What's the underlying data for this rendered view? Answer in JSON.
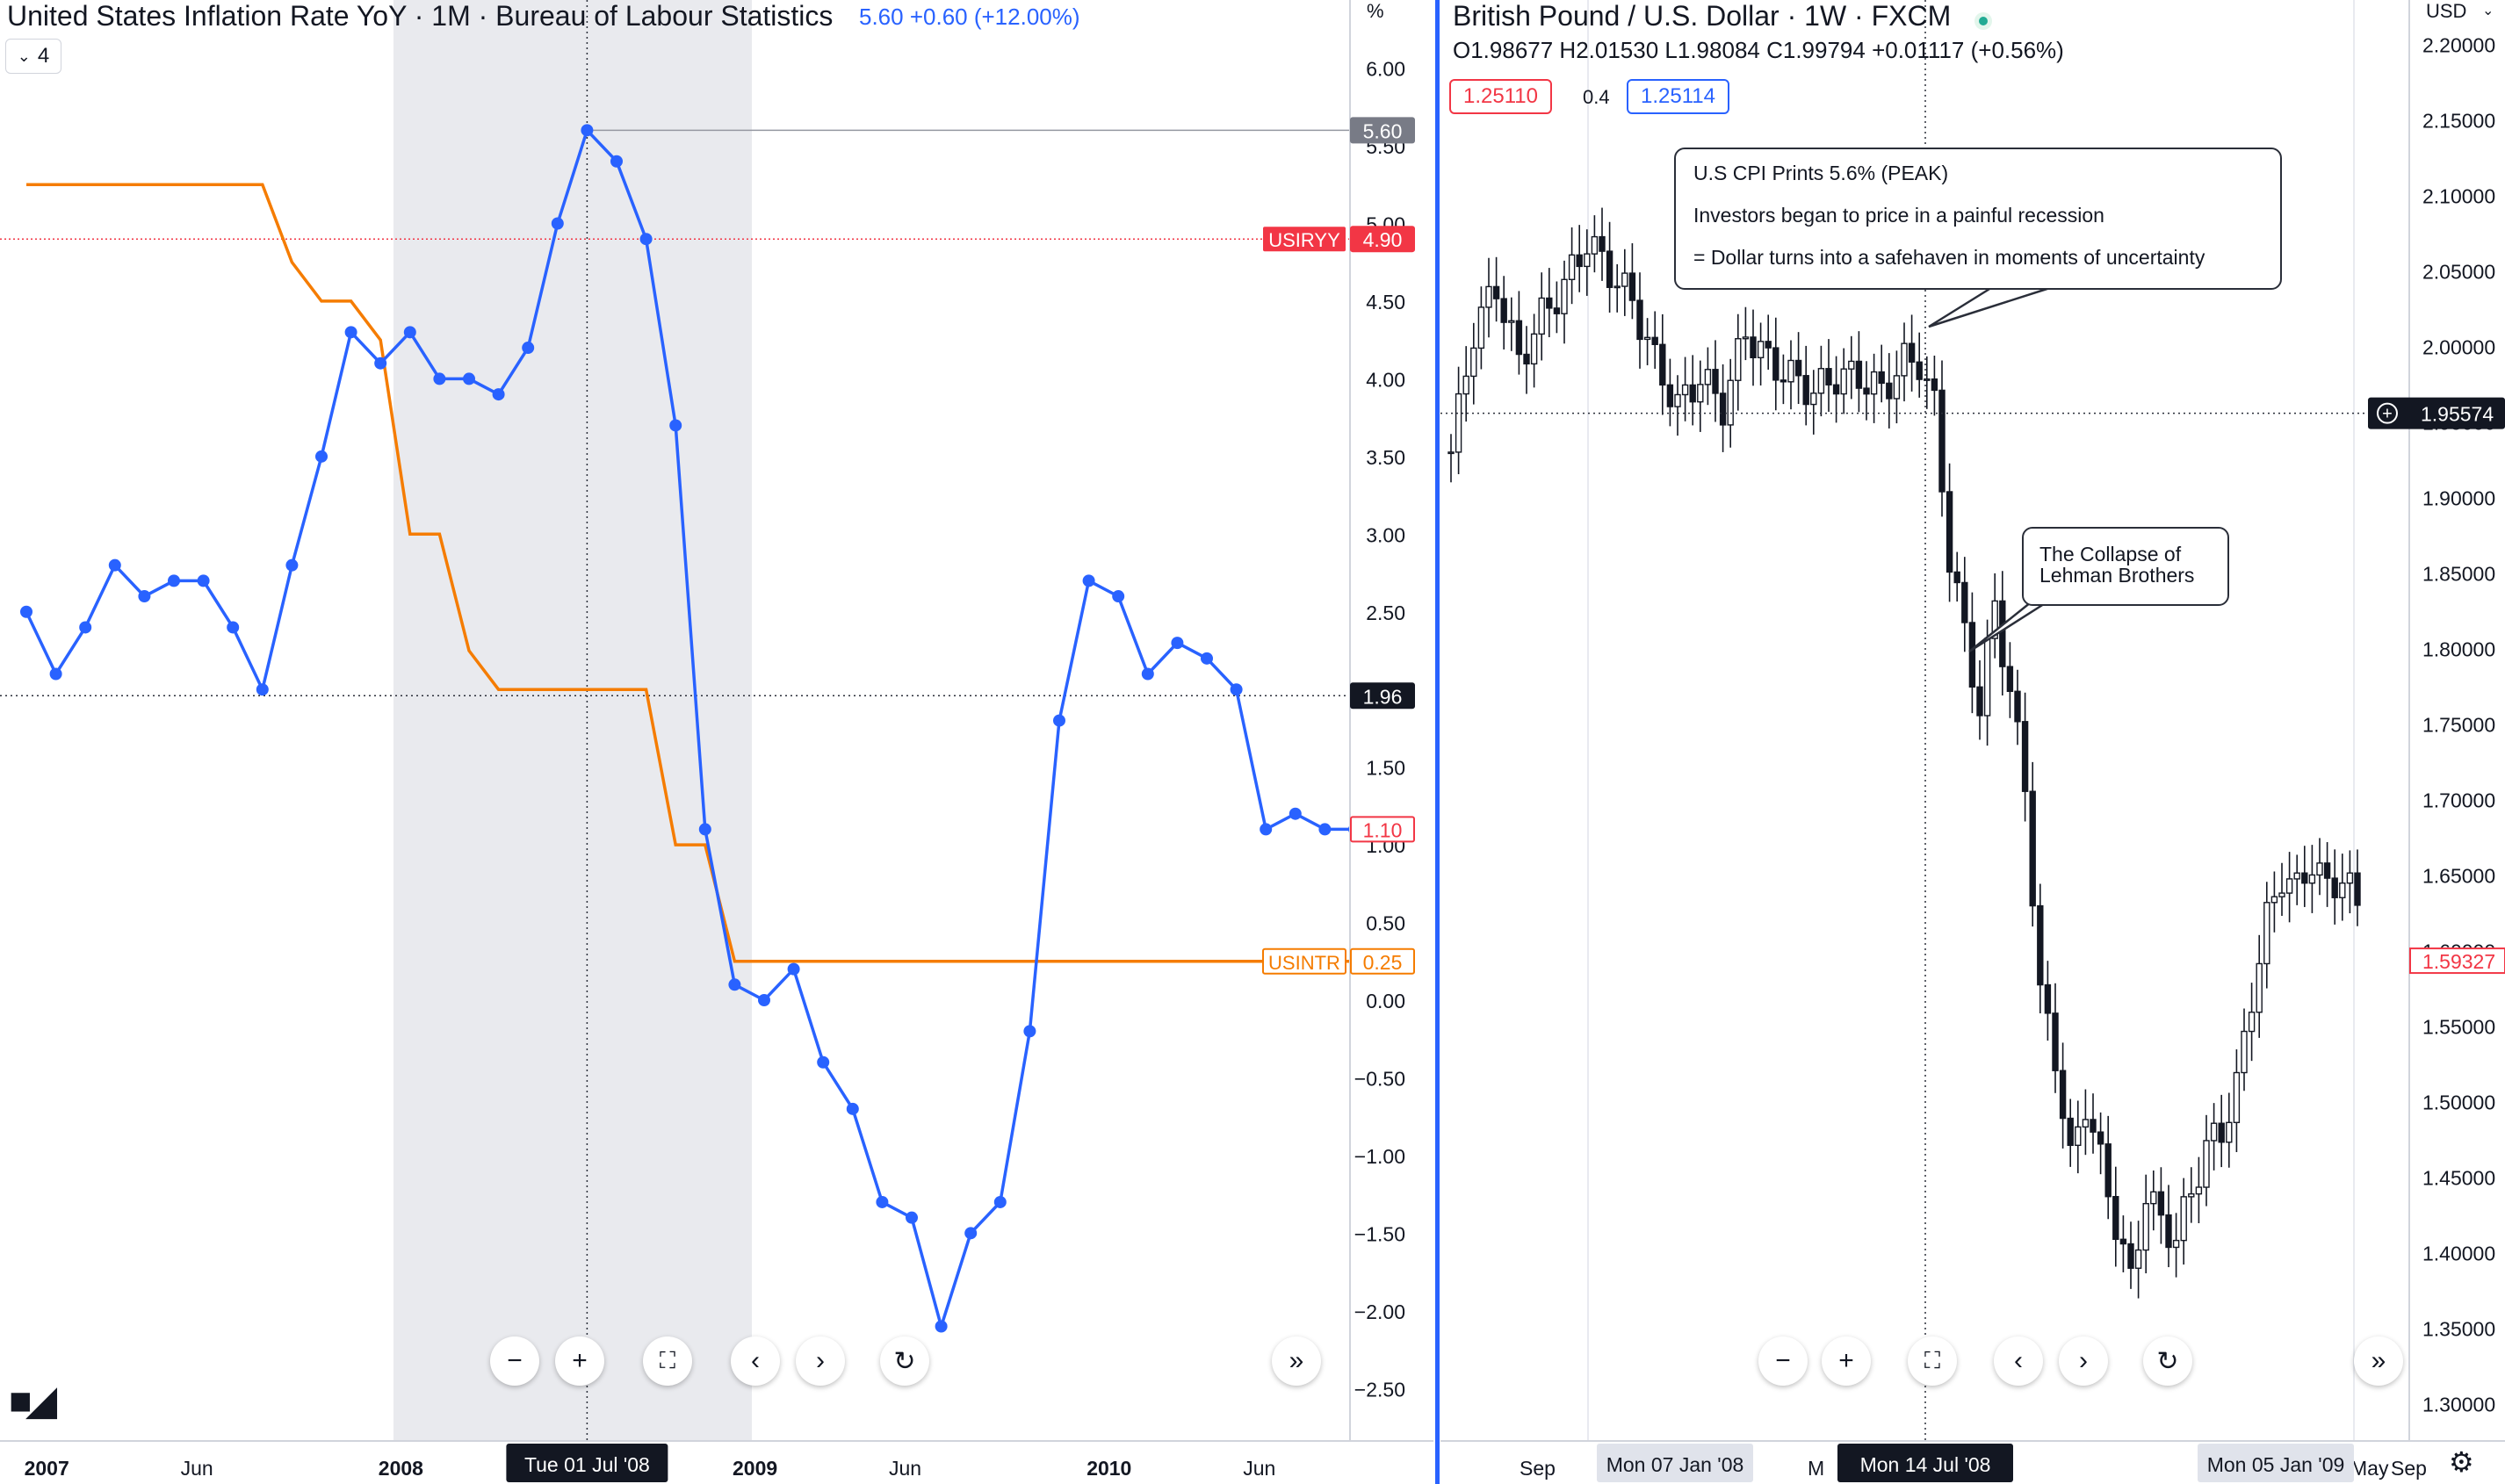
{
  "left": {
    "title": "United States Inflation Rate YoY · 1M · Bureau of Labour Statistics",
    "change": "5.60 +0.60 (+12.00%)",
    "interval_label": "4",
    "axis_unit": "%",
    "crosshair_date": "Tue 01 Jul '08",
    "labels": {
      "cpi_last": "5.60",
      "usiryy_name": "USIRYY",
      "usiryy_value": "4.90",
      "crosshair_value": "1.96",
      "cpi_end": "1.10",
      "usintr_name": "USINTR",
      "usintr_value": "0.25"
    }
  },
  "right": {
    "title": "British Pound / U.S. Dollar · 1W · FXCM",
    "ohlc": "O1.98677 H2.01530 L1.98084 C1.99794 +0.01117 (+0.56%)",
    "bid": "1.25110",
    "spread": "0.4",
    "ask": "1.25114",
    "currency": "USD",
    "crosshair_value": "1.95574",
    "last_price": "1.59327",
    "crosshair_date": "Mon 14 Jul '08",
    "date_label_1": "Mon 07 Jan '08",
    "date_label_2": "Mon 05 Jan '09",
    "callout_cpi": {
      "line1": "U.S CPI Prints 5.6% (PEAK)",
      "line2": "Investors began to price in a painful recession",
      "line3": "= Dollar turns into a safehaven in moments of uncertainty"
    },
    "callout_lehman": {
      "line1": "The Collapse of",
      "line2": "Lehman Brothers"
    }
  },
  "colors": {
    "cpi": "#2962ff",
    "rate": "#f57c00",
    "red": "#f23645",
    "shade": "#e9eaee"
  },
  "chart_data": [
    {
      "type": "line",
      "title": "United States Inflation Rate YoY · 1M · Bureau of Labour Statistics",
      "ylabel": "%",
      "ylim": [
        -2.5,
        6.0
      ],
      "y_ticks": [
        "6.00",
        "5.50",
        "5.00",
        "4.50",
        "4.00",
        "3.50",
        "3.00",
        "2.50",
        "2.00",
        "1.50",
        "1.00",
        "0.50",
        "0.00",
        "−0.50",
        "−1.00",
        "−1.50",
        "−2.00",
        "−2.50"
      ],
      "x_tick_labels": [
        "2007",
        "Jun",
        "2008",
        "Jun",
        "2009",
        "Jun",
        "2010",
        "Jun"
      ],
      "x": [
        "2006-12",
        "2007-01",
        "2007-02",
        "2007-03",
        "2007-04",
        "2007-05",
        "2007-06",
        "2007-07",
        "2007-08",
        "2007-09",
        "2007-10",
        "2007-11",
        "2007-12",
        "2008-01",
        "2008-02",
        "2008-03",
        "2008-04",
        "2008-05",
        "2008-06",
        "2008-07",
        "2008-08",
        "2008-09",
        "2008-10",
        "2008-11",
        "2008-12",
        "2009-01",
        "2009-02",
        "2009-03",
        "2009-04",
        "2009-05",
        "2009-06",
        "2009-07",
        "2009-08",
        "2009-09",
        "2009-10",
        "2009-11",
        "2009-12",
        "2010-01",
        "2010-02",
        "2010-03",
        "2010-04",
        "2010-05",
        "2010-06",
        "2010-07",
        "2010-08",
        "2010-09"
      ],
      "series": [
        {
          "name": "USIRYY",
          "values": [
            2.5,
            2.1,
            2.4,
            2.8,
            2.6,
            2.7,
            2.7,
            2.4,
            2.0,
            2.8,
            3.5,
            4.3,
            4.1,
            4.3,
            4.0,
            4.0,
            3.9,
            4.2,
            5.0,
            5.6,
            5.4,
            4.9,
            3.7,
            1.1,
            0.1,
            0.0,
            0.2,
            -0.4,
            -0.7,
            -1.3,
            -1.4,
            -2.1,
            -1.5,
            -1.3,
            -0.2,
            1.8,
            2.7,
            2.6,
            2.1,
            2.3,
            2.2,
            2.0,
            1.1,
            1.2,
            1.1,
            1.1
          ]
        },
        {
          "name": "USINTR",
          "values": [
            5.25,
            5.25,
            5.25,
            5.25,
            5.25,
            5.25,
            5.25,
            5.25,
            5.25,
            4.75,
            4.5,
            4.5,
            4.25,
            3.0,
            3.0,
            2.25,
            2.0,
            2.0,
            2.0,
            2.0,
            2.0,
            2.0,
            1.0,
            1.0,
            0.25,
            0.25,
            0.25,
            0.25,
            0.25,
            0.25,
            0.25,
            0.25,
            0.25,
            0.25,
            0.25,
            0.25,
            0.25,
            0.25,
            0.25,
            0.25,
            0.25,
            0.25,
            0.25,
            0.25,
            0.25,
            0.25
          ]
        }
      ],
      "shaded_range": [
        "2008-01",
        "2008-12"
      ]
    },
    {
      "type": "candlestick",
      "title": "British Pound / U.S. Dollar · 1W · FXCM",
      "ylabel": "USD",
      "ylim": [
        1.3,
        2.2
      ],
      "y_ticks": [
        "2.20000",
        "2.15000",
        "2.10000",
        "2.05000",
        "2.00000",
        "1.95000",
        "1.90000",
        "1.85000",
        "1.80000",
        "1.75000",
        "1.70000",
        "1.65000",
        "1.60000",
        "1.55000",
        "1.50000",
        "1.45000",
        "1.40000",
        "1.35000",
        "1.30000"
      ],
      "x_tick_labels": [
        "Sep",
        "Mon 07 Jan '08",
        "M",
        "Mon 14 Jul '08",
        "Mon 05 Jan '09",
        "May",
        "Sep"
      ],
      "anchors": [
        {
          "week": 0,
          "price": 1.93
        },
        {
          "week": 3,
          "price": 2.01
        },
        {
          "week": 6,
          "price": 2.04
        },
        {
          "week": 9,
          "price": 1.99
        },
        {
          "week": 12,
          "price": 2.02
        },
        {
          "week": 15,
          "price": 2.04
        },
        {
          "week": 18,
          "price": 2.07
        },
        {
          "week": 21,
          "price": 2.05
        },
        {
          "week": 24,
          "price": 2.03
        },
        {
          "week": 27,
          "price": 1.99
        },
        {
          "week": 30,
          "price": 1.96
        },
        {
          "week": 33,
          "price": 1.98
        },
        {
          "week": 36,
          "price": 1.96
        },
        {
          "week": 39,
          "price": 2.01
        },
        {
          "week": 42,
          "price": 1.99
        },
        {
          "week": 45,
          "price": 1.98
        },
        {
          "week": 48,
          "price": 1.97
        },
        {
          "week": 51,
          "price": 1.98
        },
        {
          "week": 54,
          "price": 1.98
        },
        {
          "week": 57,
          "price": 1.97
        },
        {
          "week": 60,
          "price": 1.99
        },
        {
          "week": 62,
          "price": 1.99
        },
        {
          "week": 64,
          "price": 1.96
        },
        {
          "week": 66,
          "price": 1.86
        },
        {
          "week": 68,
          "price": 1.81
        },
        {
          "week": 70,
          "price": 1.76
        },
        {
          "week": 72,
          "price": 1.83
        },
        {
          "week": 74,
          "price": 1.77
        },
        {
          "week": 76,
          "price": 1.71
        },
        {
          "week": 78,
          "price": 1.57
        },
        {
          "week": 80,
          "price": 1.53
        },
        {
          "week": 82,
          "price": 1.46
        },
        {
          "week": 84,
          "price": 1.5
        },
        {
          "week": 86,
          "price": 1.46
        },
        {
          "week": 88,
          "price": 1.42
        },
        {
          "week": 90,
          "price": 1.38
        },
        {
          "week": 92,
          "price": 1.44
        },
        {
          "week": 94,
          "price": 1.42
        },
        {
          "week": 96,
          "price": 1.41
        },
        {
          "week": 98,
          "price": 1.44
        },
        {
          "week": 100,
          "price": 1.47
        },
        {
          "week": 102,
          "price": 1.48
        },
        {
          "week": 104,
          "price": 1.51
        },
        {
          "week": 106,
          "price": 1.57
        },
        {
          "week": 108,
          "price": 1.62
        },
        {
          "week": 110,
          "price": 1.65
        },
        {
          "week": 112,
          "price": 1.64
        },
        {
          "week": 114,
          "price": 1.66
        },
        {
          "week": 116,
          "price": 1.64
        },
        {
          "week": 118,
          "price": 1.65
        },
        {
          "week": 120,
          "price": 1.63
        }
      ]
    }
  ]
}
